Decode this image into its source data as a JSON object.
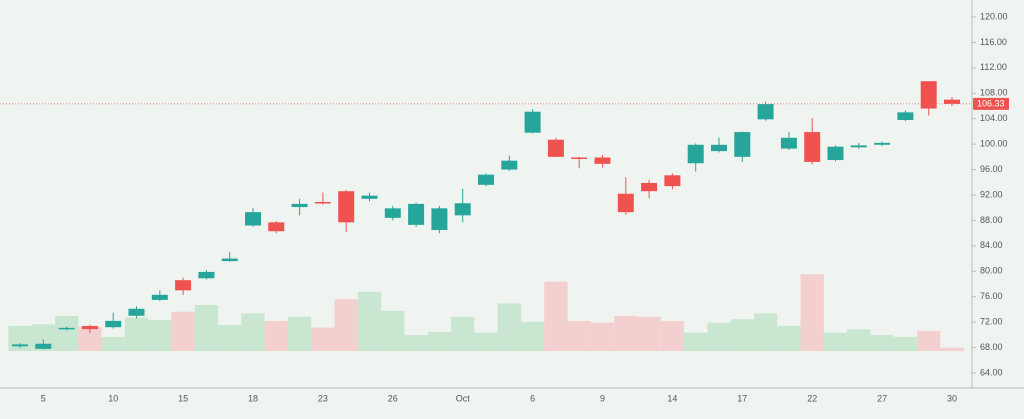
{
  "chart_data": {
    "type": "candlestick",
    "categories": [
      null,
      "5",
      null,
      null,
      "10",
      null,
      null,
      "15",
      null,
      null,
      "18",
      null,
      null,
      "23",
      null,
      null,
      "26",
      null,
      null,
      "Oct",
      null,
      null,
      "6",
      null,
      null,
      "9",
      null,
      null,
      "14",
      null,
      null,
      "17",
      null,
      null,
      "22",
      null,
      null,
      "27",
      null,
      null,
      "30"
    ],
    "open": [
      68.2,
      67.8,
      70.9,
      71.4,
      71.2,
      73.0,
      75.5,
      78.6,
      78.9,
      81.6,
      87.2,
      87.7,
      90.1,
      90.9,
      92.6,
      91.4,
      88.4,
      87.3,
      86.5,
      88.8,
      93.6,
      96.0,
      101.8,
      100.7,
      97.9,
      97.9,
      92.2,
      93.9,
      95.1,
      97.0,
      98.9,
      98.0,
      103.9,
      99.3,
      101.9,
      97.5,
      99.5,
      99.9,
      103.8,
      109.9,
      107.0
    ],
    "high": [
      68.7,
      69.3,
      71.3,
      71.6,
      73.5,
      74.5,
      77.0,
      79.0,
      80.2,
      83.0,
      90.0,
      87.9,
      91.4,
      92.4,
      92.8,
      92.4,
      90.3,
      90.8,
      90.3,
      93.0,
      95.4,
      98.2,
      105.5,
      101.0,
      98.0,
      98.3,
      94.8,
      94.4,
      95.4,
      100.1,
      101.0,
      102.0,
      106.7,
      101.9,
      104.1,
      99.8,
      100.2,
      100.4,
      105.3,
      109.9,
      107.4
    ],
    "low": [
      67.9,
      67.7,
      70.7,
      70.3,
      71.0,
      72.6,
      75.3,
      76.3,
      78.7,
      81.5,
      87.0,
      86.0,
      88.8,
      90.5,
      86.2,
      91.0,
      88.0,
      87.0,
      86.0,
      87.7,
      93.4,
      95.8,
      101.7,
      98.0,
      96.2,
      96.3,
      88.9,
      91.5,
      92.9,
      95.7,
      98.7,
      97.2,
      103.7,
      99.1,
      96.8,
      97.3,
      99.3,
      99.7,
      103.6,
      104.5,
      106.0
    ],
    "close": [
      68.5,
      68.6,
      71.1,
      70.9,
      72.2,
      74.1,
      76.3,
      77.0,
      79.9,
      82.0,
      89.3,
      86.3,
      90.6,
      90.7,
      87.7,
      91.9,
      89.9,
      90.6,
      89.9,
      90.7,
      95.2,
      97.4,
      105.1,
      98.0,
      97.7,
      96.9,
      89.3,
      92.6,
      93.4,
      99.9,
      99.9,
      101.9,
      106.3,
      101.0,
      97.2,
      99.6,
      99.8,
      100.2,
      105.0,
      105.6,
      106.33
    ],
    "volume": [
      30,
      32,
      42,
      29,
      17,
      40,
      37,
      47,
      55,
      31,
      45,
      36,
      41,
      28,
      62,
      71,
      48,
      19,
      23,
      41,
      22,
      57,
      35,
      83,
      36,
      34,
      42,
      41,
      36,
      22,
      34,
      38,
      45,
      30,
      92,
      22,
      26,
      19,
      17,
      24,
      4
    ],
    "up_color": "#26a69a",
    "down_color": "#ef5350",
    "up_volume_color": "#c8e6d0",
    "down_volume_color": "#f4cfcf",
    "ylim": [
      63,
      122
    ],
    "y2lim": [
      0,
      400
    ],
    "yticks": [
      {
        "value": 64,
        "label": "64.00"
      },
      {
        "value": 68,
        "label": "68.00"
      },
      {
        "value": 72,
        "label": "72.00"
      },
      {
        "value": 76,
        "label": "76.00"
      },
      {
        "value": 80,
        "label": "80.00"
      },
      {
        "value": 84,
        "label": "84.00"
      },
      {
        "value": 88,
        "label": "88.00"
      },
      {
        "value": 92,
        "label": "92.00"
      },
      {
        "value": 96,
        "label": "96.00"
      },
      {
        "value": 100,
        "label": "100.00"
      },
      {
        "value": 104,
        "label": "104.00"
      },
      {
        "value": 108,
        "label": "108.00"
      },
      {
        "value": 112,
        "label": "112.00"
      },
      {
        "value": 116,
        "label": "116.00"
      },
      {
        "value": 120,
        "label": "120.00"
      }
    ]
  }
}
